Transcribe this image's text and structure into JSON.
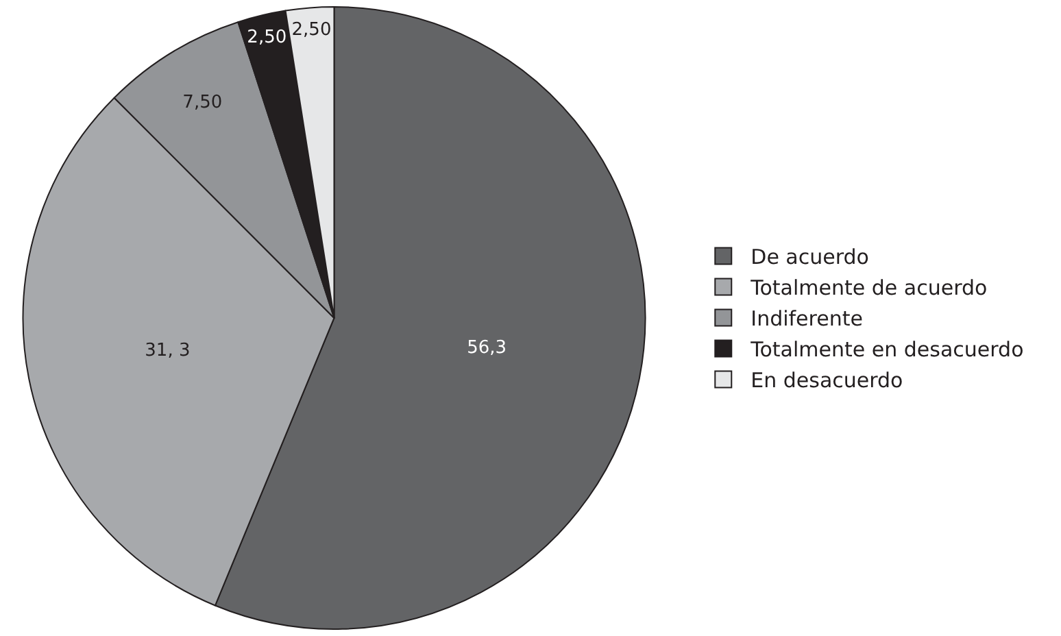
{
  "chart_data": {
    "type": "pie",
    "categories": [
      "De acuerdo",
      "Totalmente de acuerdo",
      "Indiferente",
      "Totalmente en desacuerdo",
      "En desacuerdo"
    ],
    "values": [
      56.3,
      31.3,
      7.5,
      2.5,
      2.5
    ],
    "colors": [
      "#636466",
      "#a7a9ac",
      "#939598",
      "#231f20",
      "#e6e7e8"
    ],
    "value_labels": [
      "56,3",
      "31, 3",
      "7,50",
      "2,50",
      "2,50"
    ],
    "legend": "right"
  }
}
